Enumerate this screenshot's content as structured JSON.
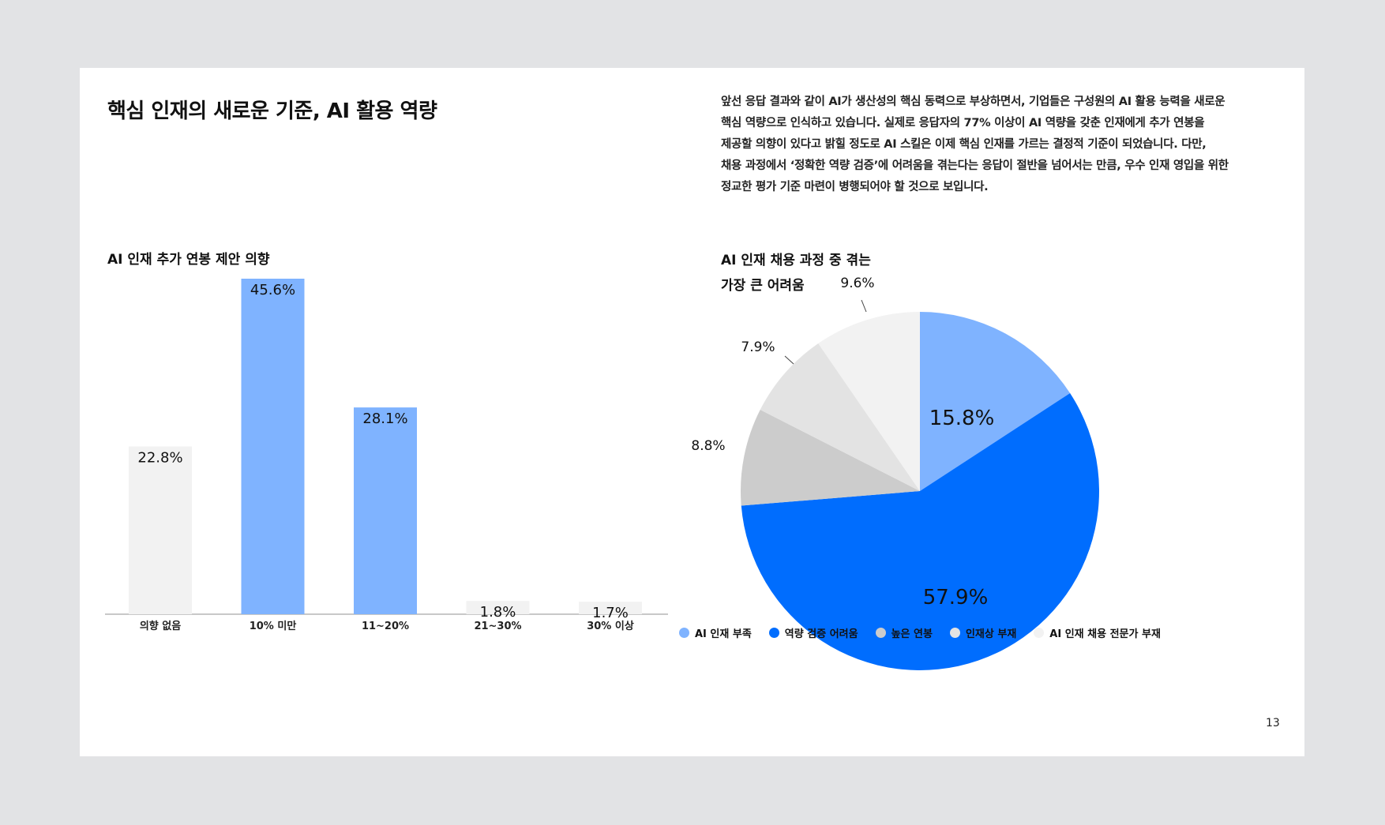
{
  "page": {
    "title": "핵심 인재의 새로운 기준, AI 활용 역량",
    "description_lines": [
      "앞선 응답 결과와 같이 AI가 생산성의 핵심 동력으로 부상하면서, 기업들은 구성원의 AI 활용 능력을 새로운",
      "핵심 역량으로 인식하고 있습니다. 실제로 응답자의 77% 이상이 AI 역량을 갖춘 인재에게 추가 연봉을",
      "제공할 의향이 있다고 밝힐 정도로 AI 스킬은 이제 핵심 인재를 가르는 결정적 기준이 되었습니다. 다만,",
      "채용 과정에서 ‘정확한 역량 검증’에 어려움을 겪는다는 응답이 절반을 넘어서는 만큼, 우수 인재 영입을 위한",
      "정교한 평가 기준 마련이 병행되어야 할 것으로 보입니다."
    ],
    "page_number": "13"
  },
  "chart_data": [
    {
      "type": "bar",
      "title": "AI 인재 추가 연봉 제안 의향",
      "categories": [
        "의향 없음",
        "10% 미만",
        "11~20%",
        "21~30%",
        "30% 이상"
      ],
      "values": [
        22.8,
        45.6,
        28.1,
        1.8,
        1.7
      ],
      "value_labels": [
        "22.8%",
        "45.6%",
        "28.1%",
        "1.8%",
        "1.7%"
      ],
      "colors": [
        "#f2f2f2",
        "#7fb3ff",
        "#7fb3ff",
        "#f2f2f2",
        "#f2f2f2"
      ],
      "ylim": [
        0,
        50
      ],
      "grid": false
    },
    {
      "type": "pie",
      "title_lines": [
        "AI 인재 채용 과정 중 겪는",
        "가장 큰 어려움"
      ],
      "categories": [
        "AI 인재 부족",
        "역량 검증 어려움",
        "높은 연봉",
        "인재상 부재",
        "AI 인재 채용 전문가 부재"
      ],
      "values": [
        15.8,
        57.9,
        8.8,
        7.9,
        9.6
      ],
      "value_labels": [
        "15.8%",
        "57.9%",
        "8.8%",
        "7.9%",
        "9.6%"
      ],
      "colors": [
        "#7fb3ff",
        "#006dfe",
        "#cccccc",
        "#e3e3e3",
        "#f2f2f2"
      ],
      "legend_position": "bottom"
    }
  ]
}
